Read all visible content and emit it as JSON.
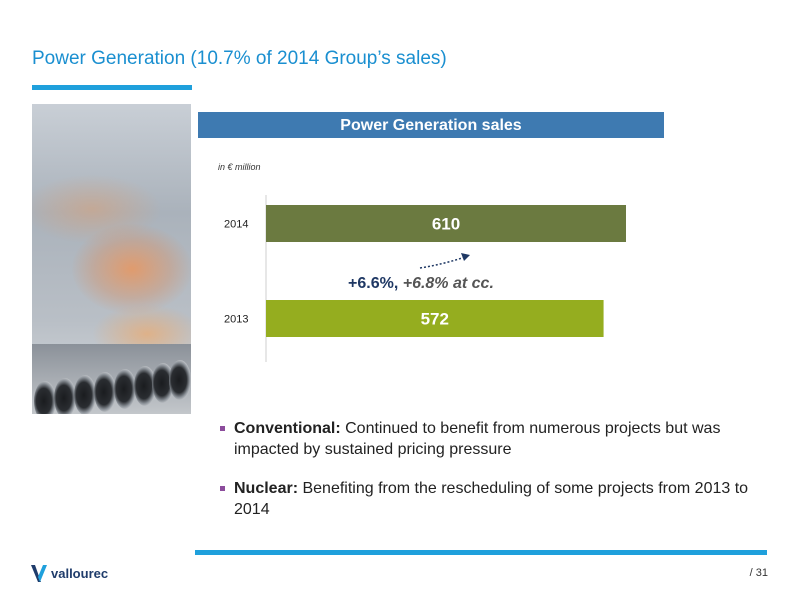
{
  "slide": {
    "title": "Power Generation (10.7% of 2014 Group’s sales)",
    "page_number": "/ 31"
  },
  "chart_header": "Power Generation sales",
  "unit_label": "in € million",
  "chart_data": {
    "type": "bar",
    "orientation": "horizontal",
    "title": "Power Generation sales",
    "unit": "in € million",
    "categories": [
      "2014",
      "2013"
    ],
    "values": [
      610,
      572
    ],
    "data_labels": [
      "610",
      "572"
    ],
    "colors": [
      "#6b7a40",
      "#95ad1f"
    ],
    "xlim": [
      0,
      640
    ],
    "annotation": "+6.6%, +6.8% at cc.",
    "grid": false,
    "legend": "none"
  },
  "annotation": {
    "main": "+6.6%,",
    "italic": "+6.8% at cc."
  },
  "bullets": [
    {
      "bold": "Conventional:",
      "text": "Continued to benefit from numerous projects but was impacted by sustained pricing pressure"
    },
    {
      "bold": "Nuclear:",
      "text": "Benefiting from the rescheduling of some projects from 2013 to 2014"
    }
  ],
  "logo": {
    "text": "vallourec",
    "icon": "vallourec-v-logo-icon"
  },
  "colors": {
    "title": "#1a8fd0",
    "accent_rule": "#1fa0dc",
    "header_bar": "#3e7ab1",
    "bullet": "#8c4c9c",
    "annotation": "#1f3864"
  }
}
